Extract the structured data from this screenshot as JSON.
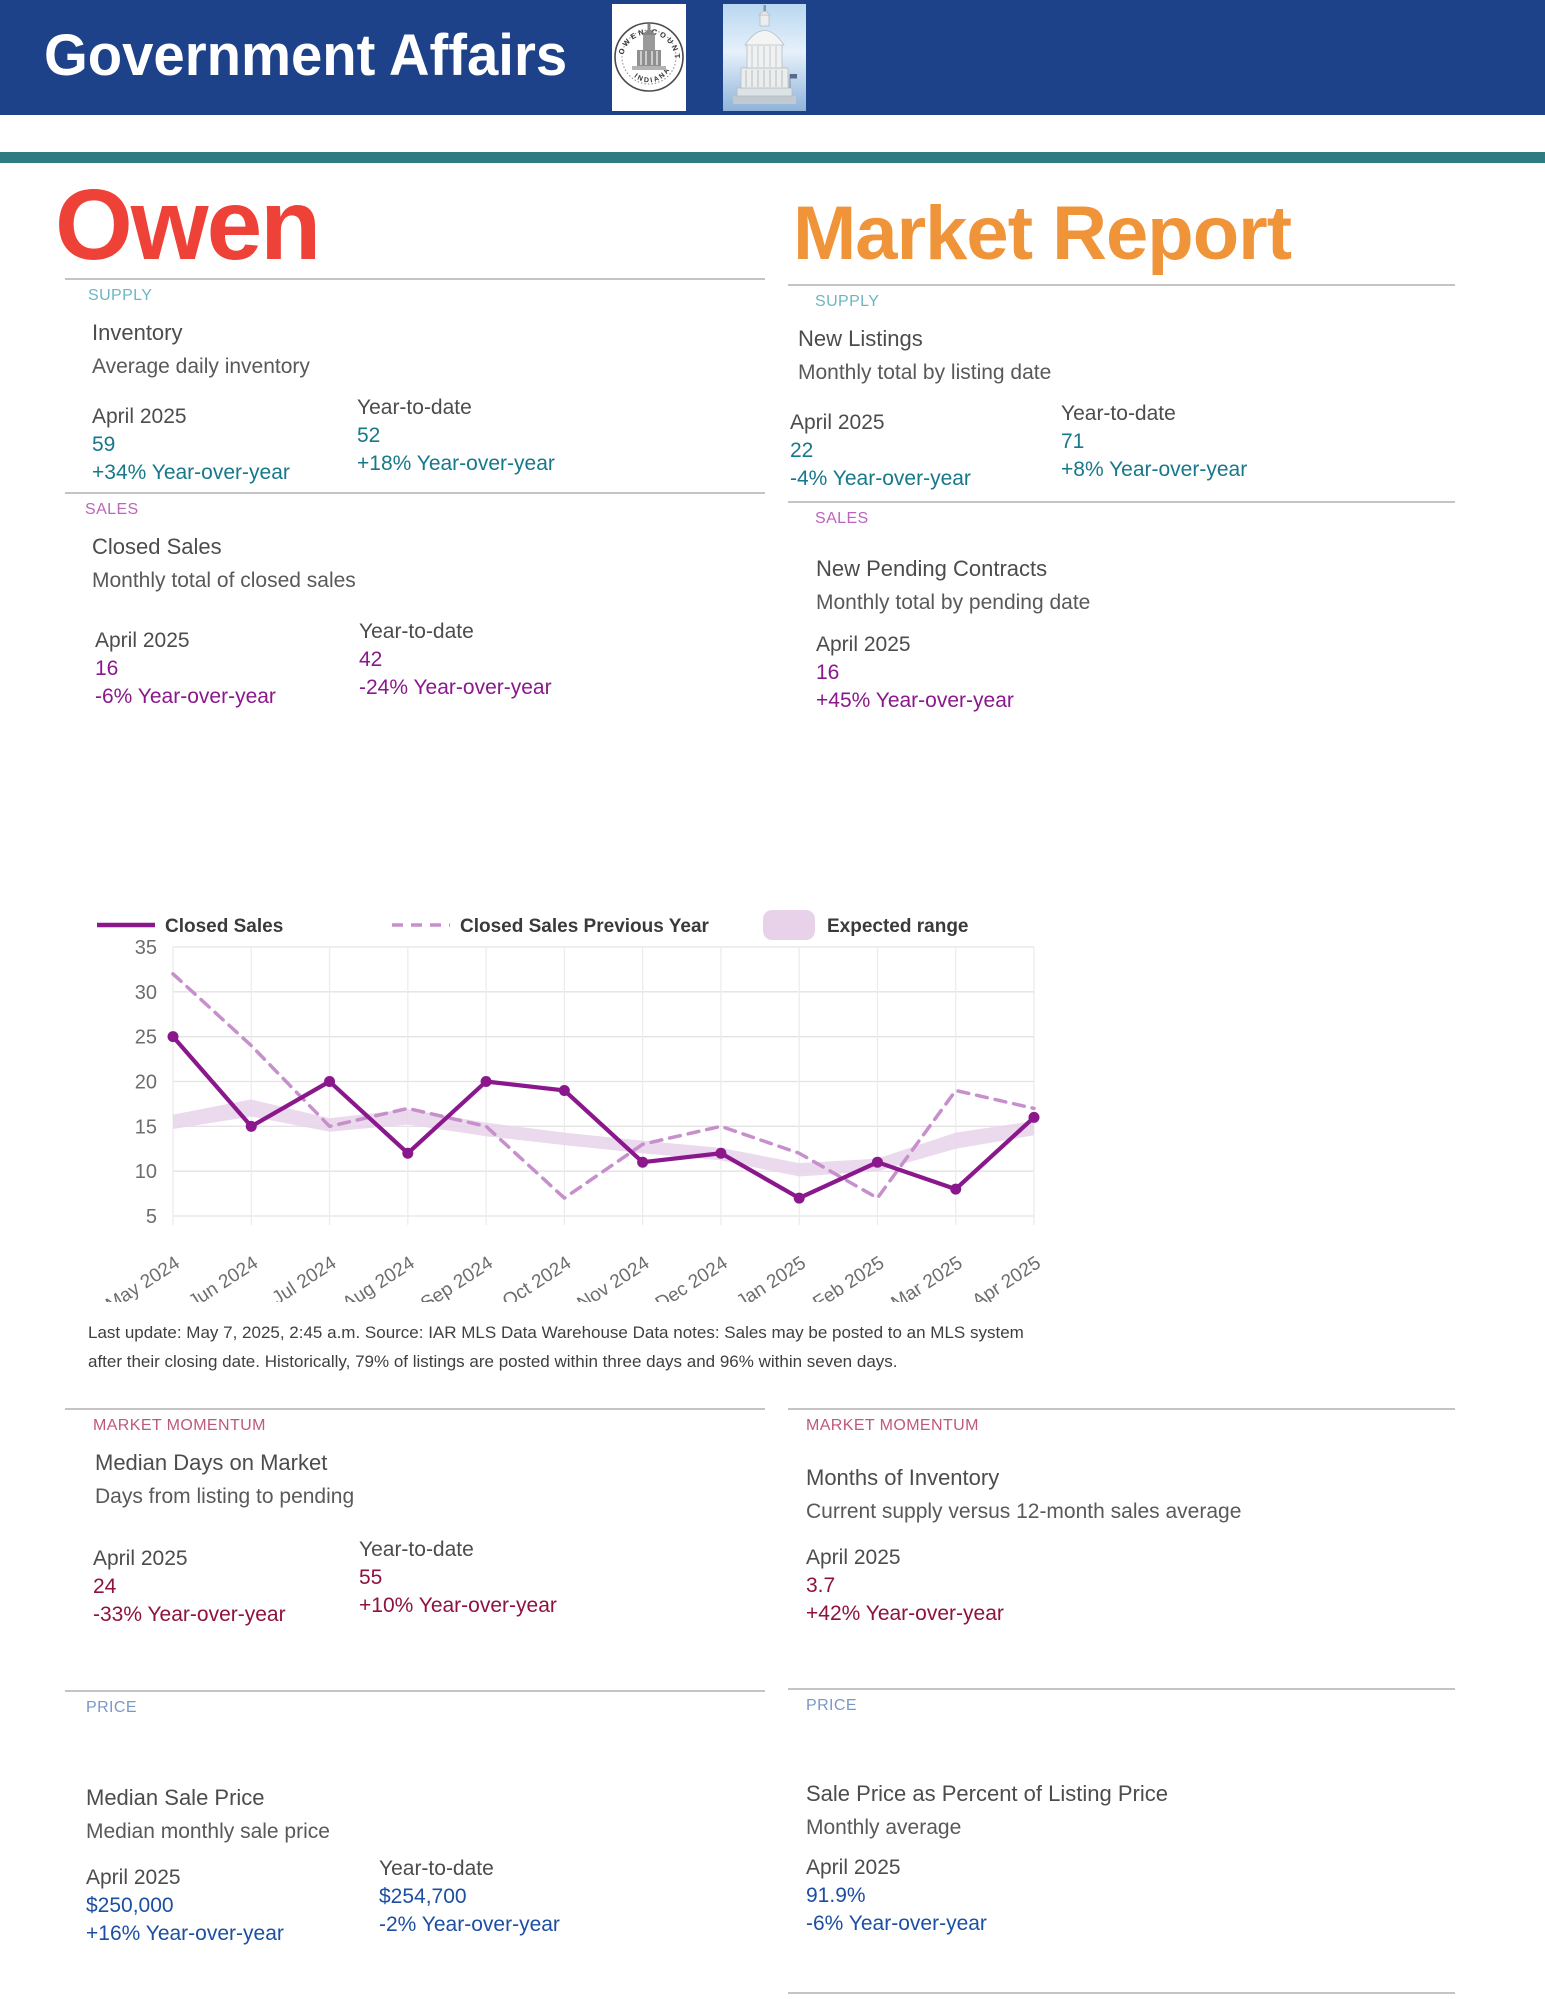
{
  "header": {
    "title": "Government Affairs",
    "logos": [
      "owen-county-seal",
      "capitol-dome-photo"
    ],
    "seal_text_top": "OWEN COUNTY",
    "seal_text_bottom": "INDIANA"
  },
  "titles": {
    "left": "Owen",
    "right": "Market Report"
  },
  "left": {
    "supply": {
      "label": "SUPPLY",
      "title": "Inventory",
      "subtitle": "Average daily inventory",
      "current": {
        "period": "April 2025",
        "value": "59",
        "yoy": "+34% Year-over-year"
      },
      "ytd": {
        "period": "Year-to-date",
        "value": "52",
        "yoy": "+18% Year-over-year"
      }
    },
    "sales": {
      "label": "SALES",
      "title": "Closed Sales",
      "subtitle": "Monthly total of closed sales",
      "current": {
        "period": "April 2025",
        "value": "16",
        "yoy": "-6% Year-over-year"
      },
      "ytd": {
        "period": "Year-to-date",
        "value": "42",
        "yoy": "-24% Year-over-year"
      }
    },
    "momentum": {
      "label": "MARKET MOMENTUM",
      "title": "Median Days on Market",
      "subtitle": "Days from listing to pending",
      "current": {
        "period": "April 2025",
        "value": "24",
        "yoy": "-33% Year-over-year"
      },
      "ytd": {
        "period": "Year-to-date",
        "value": "55",
        "yoy": "+10% Year-over-year"
      }
    },
    "price": {
      "label": "PRICE",
      "title": "Median Sale Price",
      "subtitle": "Median monthly sale price",
      "current": {
        "period": "April 2025",
        "value": "$250,000",
        "yoy": "+16% Year-over-year"
      },
      "ytd": {
        "period": "Year-to-date",
        "value": "$254,700",
        "yoy": "-2% Year-over-year"
      }
    }
  },
  "right": {
    "supply": {
      "label": "SUPPLY",
      "title": "New Listings",
      "subtitle": "Monthly total by listing date",
      "current": {
        "period": "April 2025",
        "value": "22",
        "yoy": "-4% Year-over-year"
      },
      "ytd": {
        "period": "Year-to-date",
        "value": "71",
        "yoy": "+8% Year-over-year"
      }
    },
    "sales": {
      "label": "SALES",
      "title": "New Pending Contracts",
      "subtitle": "Monthly total by pending date",
      "current": {
        "period": "April 2025",
        "value": "16",
        "yoy": "+45% Year-over-year"
      }
    },
    "momentum": {
      "label": "MARKET MOMENTUM",
      "title": "Months of Inventory",
      "subtitle": "Current supply versus 12-month sales average",
      "current": {
        "period": "April 2025",
        "value": "3.7",
        "yoy": "+42% Year-over-year"
      }
    },
    "price": {
      "label": "PRICE",
      "title": "Sale Price as Percent of Listing Price",
      "subtitle": "Monthly average",
      "current": {
        "period": "April 2025",
        "value": "91.9%",
        "yoy": "-6% Year-over-year"
      }
    }
  },
  "footnote": "Last update: May 7, 2025, 2:45 a.m. Source: IAR MLS Data Warehouse Data notes: Sales may be posted to an MLS system after their closing date. Historically, 79% of listings are posted within three days and 96% within seven days.",
  "chart_data": {
    "type": "line",
    "title": "",
    "categories": [
      "May 2024",
      "Jun 2024",
      "Jul 2024",
      "Aug 2024",
      "Sep 2024",
      "Oct 2024",
      "Nov 2024",
      "Dec 2024",
      "Jan 2025",
      "Feb 2025",
      "Mar 2025",
      "Apr 2025"
    ],
    "series": [
      {
        "name": "Closed Sales",
        "style": "solid",
        "color": "#8a188c",
        "values": [
          25,
          15,
          20,
          12,
          20,
          19,
          11,
          12,
          7,
          11,
          8,
          16
        ]
      },
      {
        "name": "Closed Sales Previous Year",
        "style": "dashed",
        "color": "#c78fcb",
        "values": [
          32,
          24,
          15,
          17,
          15,
          7,
          13,
          15,
          12,
          7,
          19,
          17
        ]
      }
    ],
    "band": {
      "name": "Expected range",
      "color": "#e7d2ea",
      "lower": [
        14.7,
        16.1,
        14.4,
        15.2,
        13.9,
        12.9,
        12.0,
        11.2,
        9.4,
        10.0,
        12.5,
        14.0
      ],
      "upper": [
        16.3,
        18.0,
        15.9,
        16.9,
        15.4,
        14.3,
        13.4,
        12.6,
        10.9,
        11.4,
        14.3,
        15.6
      ]
    },
    "ylim": [
      5,
      35
    ],
    "yticks": [
      5,
      10,
      15,
      20,
      25,
      30,
      35
    ],
    "grid": true,
    "legend_position": "top"
  },
  "colors": {
    "header_bg": "#1e4289",
    "teal_bar": "#2e7b80",
    "owen_red": "#ee4137",
    "report_orange": "#f0943a",
    "supply_label": "#6cb6c3",
    "supply_value": "#17788a",
    "sales_label": "#bd65bd",
    "sales_value": "#8a188c",
    "momentum_label": "#c05878",
    "momentum_value": "#8e1240",
    "price_label": "#7b97c9",
    "price_value": "#1c4fa1",
    "chart_solid": "#8a188c",
    "chart_dashed": "#c78fcb",
    "chart_band": "#e7d2ea",
    "divider": "#c4c4c4"
  }
}
